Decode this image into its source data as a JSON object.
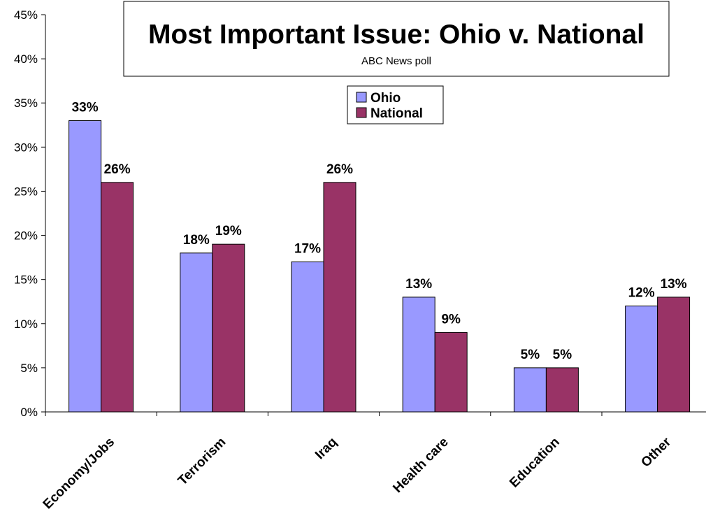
{
  "chart_data": {
    "type": "bar",
    "title": "Most Important Issue: Ohio v. National",
    "subtitle": "ABC News poll",
    "categories": [
      "Economy/Jobs",
      "Terrorism",
      "Iraq",
      "Health care",
      "Education",
      "Other"
    ],
    "series": [
      {
        "name": "Ohio",
        "values": [
          33,
          18,
          17,
          13,
          5,
          12
        ],
        "color": "#9999ff",
        "labels": [
          "33%",
          "18%",
          "17%",
          "13%",
          "5%",
          "12%"
        ]
      },
      {
        "name": "National",
        "values": [
          26,
          19,
          26,
          9,
          5,
          13
        ],
        "color": "#993366",
        "labels": [
          "26%",
          "19%",
          "26%",
          "9%",
          "5%",
          "13%"
        ]
      }
    ],
    "ylim": [
      0,
      45
    ],
    "yticks": [
      0,
      5,
      10,
      15,
      20,
      25,
      30,
      35,
      40,
      45
    ],
    "ytick_labels": [
      "0%",
      "5%",
      "10%",
      "15%",
      "20%",
      "25%",
      "30%",
      "35%",
      "40%",
      "45%"
    ],
    "xlabel": "",
    "ylabel": "",
    "grid": false,
    "legend": "top-center"
  }
}
